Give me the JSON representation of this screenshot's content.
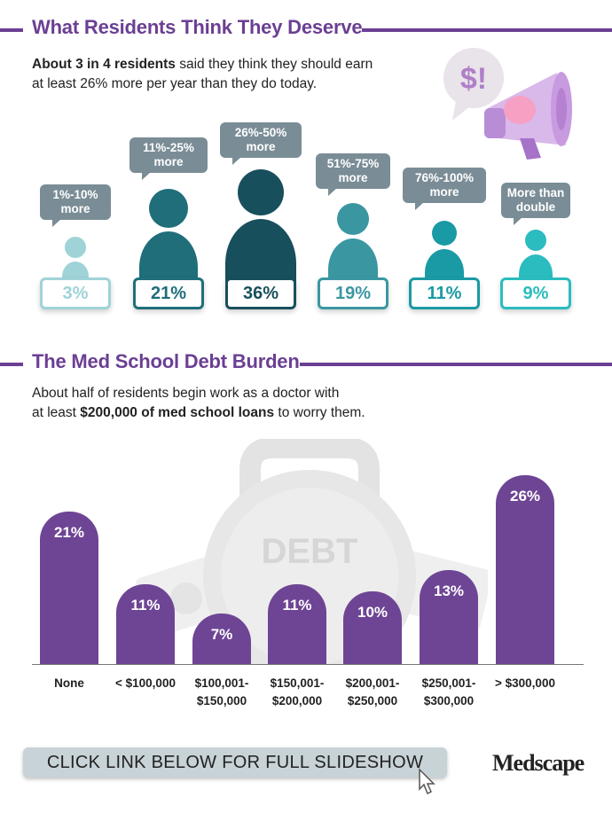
{
  "section1": {
    "title": "What Residents Think They Deserve",
    "intro_bold": "About 3 in 4 residents",
    "intro_rest_line1": " said they think they should earn",
    "intro_line2": "at least 26% more per year than they do today.",
    "megaphone_text": "$!",
    "figures": [
      {
        "label_line1": "1%-10%",
        "label_line2": "more",
        "value": "3%",
        "color": "#9fd3d8"
      },
      {
        "label_line1": "11%-25%",
        "label_line2": "more",
        "value": "21%",
        "color": "#1f6e7a"
      },
      {
        "label_line1": "26%-50%",
        "label_line2": "more",
        "value": "36%",
        "color": "#184f5c"
      },
      {
        "label_line1": "51%-75%",
        "label_line2": "more",
        "value": "19%",
        "color": "#3a97a2"
      },
      {
        "label_line1": "76%-100%",
        "label_line2": "more",
        "value": "11%",
        "color": "#1a9aa4"
      },
      {
        "label_line1": "More than",
        "label_line2": "double",
        "value": "9%",
        "color": "#2bbcbf"
      }
    ]
  },
  "section2": {
    "title": "The Med School Debt Burden",
    "intro_line1": "About half of residents begin work as a doctor with",
    "intro_prefix": "at least ",
    "intro_bold": "$200,000 of med school loans",
    "intro_suffix": " to worry them.",
    "weight_text": "DEBT"
  },
  "chart_data": {
    "type": "bar",
    "title": "The Med School Debt Burden",
    "categories": [
      "None",
      "< $100,000",
      "$100,001-$150,000",
      "$150,001-$200,000",
      "$200,001-$250,000",
      "$250,001-$300,000",
      "> $300,000"
    ],
    "category_lines": [
      [
        "None"
      ],
      [
        "< $100,000"
      ],
      [
        "$100,001-",
        "$150,000"
      ],
      [
        "$150,001-",
        "$200,000"
      ],
      [
        "$200,001-",
        "$250,000"
      ],
      [
        "$250,001-",
        "$300,000"
      ],
      [
        "> $300,000"
      ]
    ],
    "values": [
      21,
      11,
      7,
      11,
      10,
      13,
      26
    ],
    "value_labels": [
      "21%",
      "11%",
      "7%",
      "11%",
      "10%",
      "13%",
      "26%"
    ],
    "ylim": [
      0,
      26
    ],
    "color": "#6e4595"
  },
  "footer": {
    "cta": "CLICK LINK BELOW FOR FULL SLIDESHOW",
    "logo": "Medscape"
  }
}
